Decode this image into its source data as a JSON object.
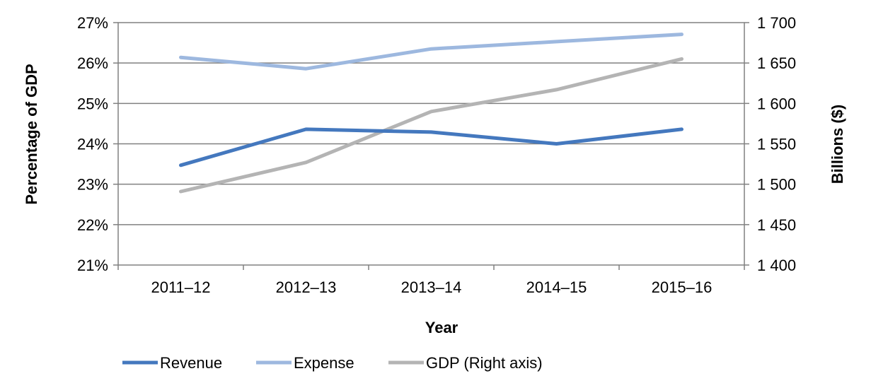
{
  "chart_data": {
    "type": "line",
    "title": "",
    "xlabel": "Year",
    "ylabel": "Percentage of GDP",
    "y2label": "Billions ($)",
    "categories": [
      "2011–12",
      "2012–13",
      "2013–14",
      "2014–15",
      "2015–16"
    ],
    "ylim": [
      21,
      27
    ],
    "y_ticks": [
      21,
      22,
      23,
      24,
      25,
      26,
      27
    ],
    "y_tick_labels": [
      "21%",
      "22%",
      "23%",
      "24%",
      "25%",
      "26%",
      "27%"
    ],
    "y2lim": [
      1400,
      1700
    ],
    "y2_ticks": [
      1400,
      1450,
      1500,
      1550,
      1600,
      1650,
      1700
    ],
    "y2_tick_labels": [
      "1 400",
      "1 450",
      "1 500",
      "1 550",
      "1 600",
      "1 650",
      "1 700"
    ],
    "grid": true,
    "legend_position": "bottom",
    "series": [
      {
        "name": "Revenue",
        "axis": "left",
        "color": "#4478BE",
        "values": [
          23.47,
          24.36,
          24.29,
          24.0,
          24.36
        ]
      },
      {
        "name": "Expense",
        "axis": "left",
        "color": "#9DB8DF",
        "values": [
          26.14,
          25.86,
          26.35,
          26.53,
          26.71
        ]
      },
      {
        "name": "GDP (Right axis)",
        "axis": "right",
        "color": "#B4B4B4",
        "values": [
          1491,
          1527,
          1590,
          1617,
          1655
        ]
      }
    ]
  }
}
